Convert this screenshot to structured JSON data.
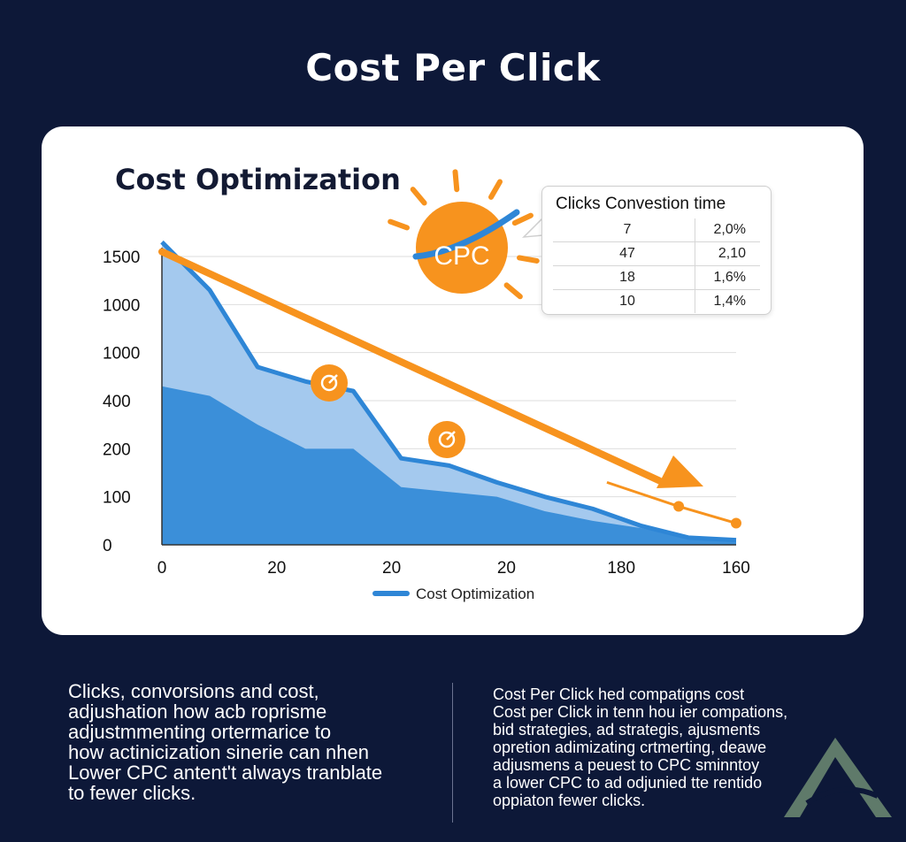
{
  "page": {
    "title": "Cost Per Click"
  },
  "chart_data": {
    "type": "area",
    "title": "Cost Optimization",
    "xlabel": "",
    "ylabel": "",
    "x_tick_labels": [
      "0",
      "20",
      "20",
      "20",
      "180",
      "160"
    ],
    "y_tick_labels": [
      "0",
      "100",
      "200",
      "400",
      "1000",
      "1000",
      "1500"
    ],
    "x": [
      0,
      1,
      2,
      3,
      4,
      5,
      6,
      7,
      8,
      9,
      10,
      11,
      12
    ],
    "series": [
      {
        "name": "Cost Optimization",
        "role": "upper-area",
        "values": [
          6.3,
          5.3,
          3.7,
          3.4,
          3.2,
          1.8,
          1.65,
          1.3,
          1.0,
          0.75,
          0.4,
          0.15,
          0.1
        ]
      },
      {
        "name": "",
        "role": "lower-area",
        "values": [
          3.3,
          3.1,
          2.5,
          2.0,
          2.0,
          1.2,
          1.1,
          1.0,
          0.7,
          0.5,
          0.35,
          0.15,
          0.1
        ]
      }
    ],
    "trend": {
      "start": 6.1,
      "end": 1.3
    },
    "tail_markers": [
      1.3,
      0.8,
      0.45
    ],
    "legend": {
      "entries": [
        "Cost Optimization"
      ],
      "position": "bottom-center"
    },
    "badge_label": "CPC",
    "colors": {
      "upper_area": "#a4c9ee",
      "lower_area": "#3b8fd9",
      "edge_line": "#2e86d6",
      "trend": "#f7931e",
      "badge": "#f7931e",
      "grid": "#dedede"
    },
    "table": {
      "title": "Clicks Convestion time",
      "rows": [
        {
          "c1": "7",
          "c2": "2,0%"
        },
        {
          "c1": "47",
          "c2": "2,10"
        },
        {
          "c1": "18",
          "c2": "1,6%"
        },
        {
          "c1": "10",
          "c2": "1,4%"
        }
      ]
    }
  },
  "footer": {
    "left_lines": [
      "Clicks, convorsions and cost,",
      "adjushation how acb roprisme",
      "adjustmmenting ortermarice to",
      "how actinicization sinerie can nhen",
      "Lower CPC antent't always tranblate",
      "to fewer clicks."
    ],
    "right_lines": [
      "Cost Per Click hed compatigns cost",
      "Cost per Click in tenn hou ier compations,",
      "bid strategies, ad strategis, ajusments",
      "opretion adimizating crtmerting, deawe",
      "adjusmens a peuest to CPC sminntoy",
      "a lower CPC to ad odjunied tte rentido",
      "oppiaton fewer clicks."
    ]
  }
}
